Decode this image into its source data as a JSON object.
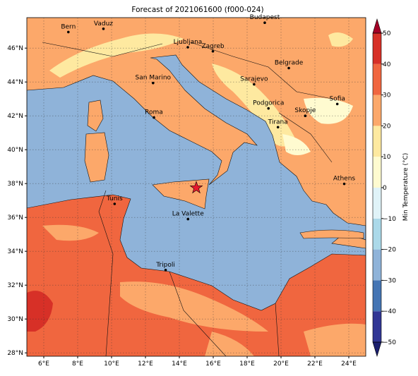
{
  "map": {
    "title": "Forecast of 2021061600 (f000-024)",
    "extent": {
      "lon": [
        5,
        25
      ],
      "lat": [
        27.8,
        47.8
      ]
    },
    "xticks": [
      {
        "value": 6,
        "label": "6°E"
      },
      {
        "value": 8,
        "label": "8°E"
      },
      {
        "value": 10,
        "label": "10°E"
      },
      {
        "value": 12,
        "label": "12°E"
      },
      {
        "value": 14,
        "label": "14°E"
      },
      {
        "value": 16,
        "label": "16°E"
      },
      {
        "value": 18,
        "label": "18°E"
      },
      {
        "value": 20,
        "label": "20°E"
      },
      {
        "value": 22,
        "label": "22°E"
      },
      {
        "value": 24,
        "label": "24°E"
      }
    ],
    "yticks": [
      {
        "value": 28,
        "label": "28°N"
      },
      {
        "value": 30,
        "label": "30°N"
      },
      {
        "value": 32,
        "label": "32°N"
      },
      {
        "value": 34,
        "label": "34°N"
      },
      {
        "value": 36,
        "label": "36°N"
      },
      {
        "value": 38,
        "label": "38°N"
      },
      {
        "value": 40,
        "label": "40°N"
      },
      {
        "value": 42,
        "label": "42°N"
      },
      {
        "value": 44,
        "label": "44°N"
      },
      {
        "value": 46,
        "label": "46°N"
      }
    ],
    "grid": true,
    "cities": [
      {
        "name": "Bern",
        "lon": 7.45,
        "lat": 46.95
      },
      {
        "name": "Vaduz",
        "lon": 9.52,
        "lat": 47.14
      },
      {
        "name": "Budapest",
        "lon": 19.04,
        "lat": 47.5
      },
      {
        "name": "Ljubljana",
        "lon": 14.5,
        "lat": 46.05
      },
      {
        "name": "Zagreb",
        "lon": 15.98,
        "lat": 45.81
      },
      {
        "name": "Belgrade",
        "lon": 20.46,
        "lat": 44.82
      },
      {
        "name": "San Marino",
        "lon": 12.45,
        "lat": 43.94
      },
      {
        "name": "Sarajevo",
        "lon": 18.41,
        "lat": 43.86
      },
      {
        "name": "Sofia",
        "lon": 23.32,
        "lat": 42.7
      },
      {
        "name": "Roma",
        "lon": 12.5,
        "lat": 41.9
      },
      {
        "name": "Podgorica",
        "lon": 19.26,
        "lat": 42.44
      },
      {
        "name": "Skopje",
        "lon": 21.43,
        "lat": 42.0
      },
      {
        "name": "Tirana",
        "lon": 19.82,
        "lat": 41.33
      },
      {
        "name": "Athens",
        "lon": 23.73,
        "lat": 37.98
      },
      {
        "name": "Tunis",
        "lon": 10.18,
        "lat": 36.8
      },
      {
        "name": "La Valette",
        "lon": 14.51,
        "lat": 35.9
      },
      {
        "name": "Tripoli",
        "lon": 13.19,
        "lat": 32.89
      }
    ],
    "marker": {
      "lon": 15.0,
      "lat": 37.75,
      "color": "#e8192c"
    },
    "colorbar": {
      "label": "Min Temperature (°C)",
      "lim": [
        -50,
        50
      ],
      "ticks": [
        {
          "value": -50,
          "label": "−50"
        },
        {
          "value": -40,
          "label": "−40"
        },
        {
          "value": -30,
          "label": "−30"
        },
        {
          "value": -20,
          "label": "−20"
        },
        {
          "value": -10,
          "label": "−10"
        },
        0,
        10,
        20,
        30,
        40,
        50
      ],
      "colors": [
        "#313695",
        "#4575b4",
        "#8fb3d9",
        "#abd9e9",
        "#e0f3f8",
        "#fffbd0",
        "#fee9a0",
        "#fca86a",
        "#f0663f",
        "#d73027"
      ],
      "extend_colors": [
        "#1b1f6e",
        "#a50026"
      ]
    }
  }
}
